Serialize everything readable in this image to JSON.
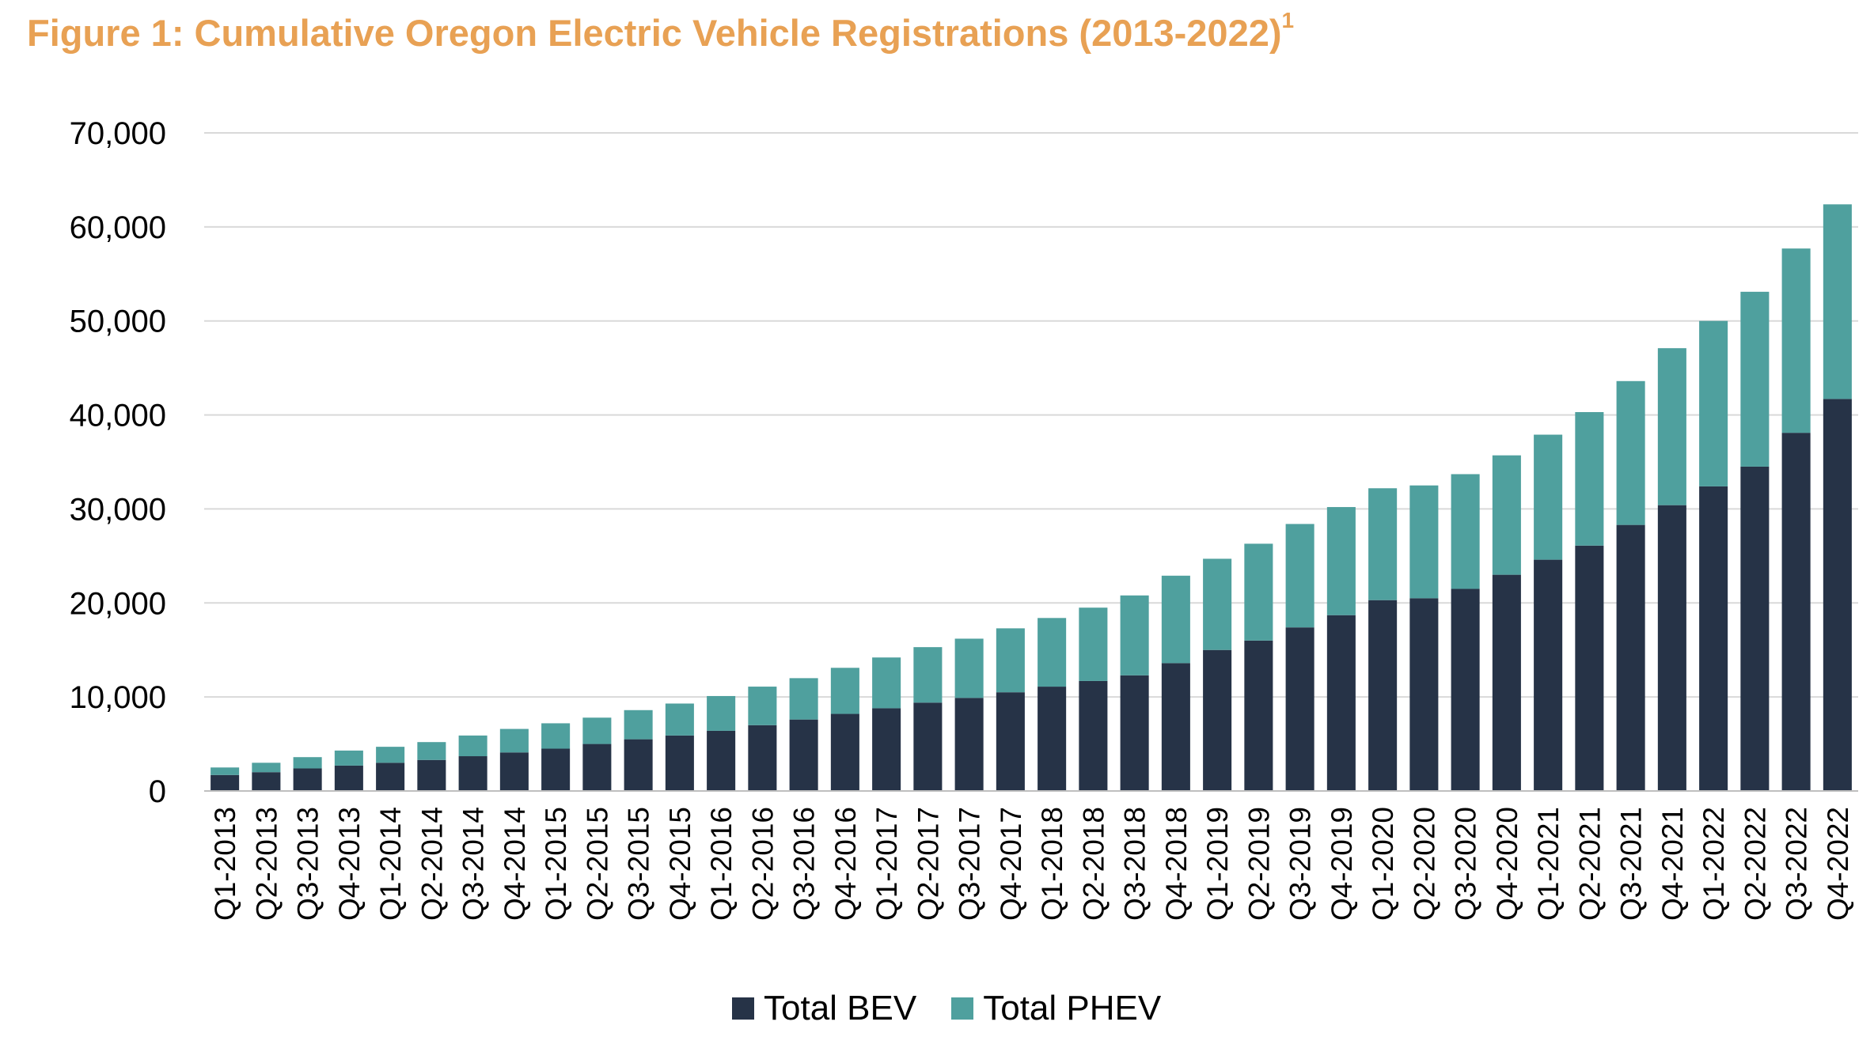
{
  "chart_data": {
    "type": "bar",
    "stacked": true,
    "title": "Figure 1: Cumulative Oregon Electric Vehicle Registrations (2013-2022)",
    "title_footnote": "1",
    "xlabel": "",
    "ylabel": "",
    "ylim": [
      0,
      70000
    ],
    "yticks": [
      0,
      10000,
      20000,
      30000,
      40000,
      50000,
      60000,
      70000
    ],
    "ytick_labels": [
      "0",
      "10,000",
      "20,000",
      "30,000",
      "40,000",
      "50,000",
      "60,000",
      "70,000"
    ],
    "grid": true,
    "legend_position": "bottom-center",
    "categories": [
      "Q1-2013",
      "Q2-2013",
      "Q3-2013",
      "Q4-2013",
      "Q1-2014",
      "Q2-2014",
      "Q3-2014",
      "Q4-2014",
      "Q1-2015",
      "Q2-2015",
      "Q3-2015",
      "Q4-2015",
      "Q1-2016",
      "Q2-2016",
      "Q3-2016",
      "Q4-2016",
      "Q1-2017",
      "Q2-2017",
      "Q3-2017",
      "Q4-2017",
      "Q1-2018",
      "Q2-2018",
      "Q3-2018",
      "Q4-2018",
      "Q1-2019",
      "Q2-2019",
      "Q3-2019",
      "Q4-2019",
      "Q1-2020",
      "Q2-2020",
      "Q3-2020",
      "Q4-2020",
      "Q1-2021",
      "Q2-2021",
      "Q3-2021",
      "Q4-2021",
      "Q1-2022",
      "Q2-2022",
      "Q3-2022",
      "Q4-2022"
    ],
    "series": [
      {
        "name": "Total BEV",
        "color": "#263347",
        "values": [
          1700,
          2000,
          2400,
          2700,
          3000,
          3300,
          3700,
          4100,
          4500,
          5000,
          5500,
          5900,
          6400,
          7000,
          7600,
          8200,
          8800,
          9400,
          9900,
          10500,
          11100,
          11700,
          12300,
          13600,
          15000,
          16000,
          17400,
          18700,
          20300,
          20500,
          21500,
          23000,
          24600,
          26100,
          28300,
          30400,
          32400,
          34500,
          38100,
          41700
        ]
      },
      {
        "name": "Total PHEV",
        "color": "#4FA09E",
        "values": [
          800,
          1000,
          1200,
          1600,
          1700,
          1900,
          2200,
          2500,
          2700,
          2800,
          3100,
          3400,
          3700,
          4100,
          4400,
          4900,
          5400,
          5900,
          6300,
          6800,
          7300,
          7800,
          8500,
          9300,
          9700,
          10300,
          11000,
          11500,
          11900,
          12000,
          12200,
          12700,
          13300,
          14200,
          15300,
          16700,
          17600,
          18600,
          19600,
          20700
        ]
      }
    ]
  }
}
